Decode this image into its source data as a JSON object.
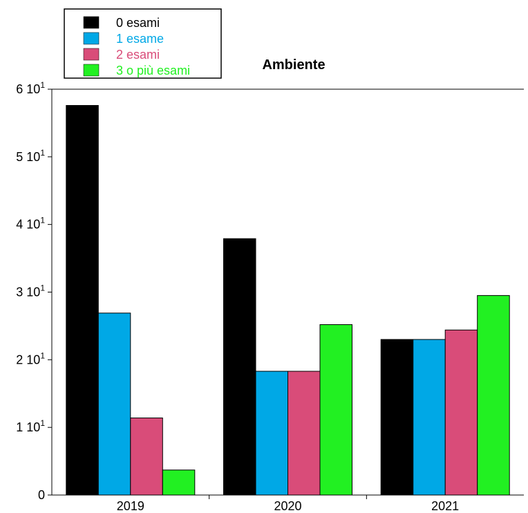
{
  "chart_data": {
    "type": "bar",
    "title": "Ambiente",
    "xlabel": "",
    "ylabel": "",
    "categories": [
      "2019",
      "2020",
      "2021"
    ],
    "series": [
      {
        "name": "0 esami",
        "color": "#000000",
        "values": [
          57.6,
          37.9,
          23.0
        ]
      },
      {
        "name": "1 esame",
        "color": "#00A8E6",
        "values": [
          26.9,
          18.3,
          23.0
        ]
      },
      {
        "name": "2 esami",
        "color": "#D94C79",
        "values": [
          11.4,
          18.3,
          24.4
        ]
      },
      {
        "name": "3 o più esami",
        "color": "#22F022",
        "values": [
          3.7,
          25.2,
          29.5
        ]
      }
    ],
    "ylim": [
      0,
      60
    ],
    "yticks": [
      {
        "value": 0,
        "mantissa": "0",
        "base": "",
        "exp": ""
      },
      {
        "value": 10,
        "mantissa": "1",
        "base": "10",
        "exp": "1"
      },
      {
        "value": 20,
        "mantissa": "2",
        "base": "10",
        "exp": "1"
      },
      {
        "value": 30,
        "mantissa": "3",
        "base": "10",
        "exp": "1"
      },
      {
        "value": 40,
        "mantissa": "4",
        "base": "10",
        "exp": "1"
      },
      {
        "value": 50,
        "mantissa": "5",
        "base": "10",
        "exp": "1"
      },
      {
        "value": 60,
        "mantissa": "6",
        "base": "10",
        "exp": "1"
      }
    ],
    "grid": false,
    "legend_position": "top-left"
  }
}
